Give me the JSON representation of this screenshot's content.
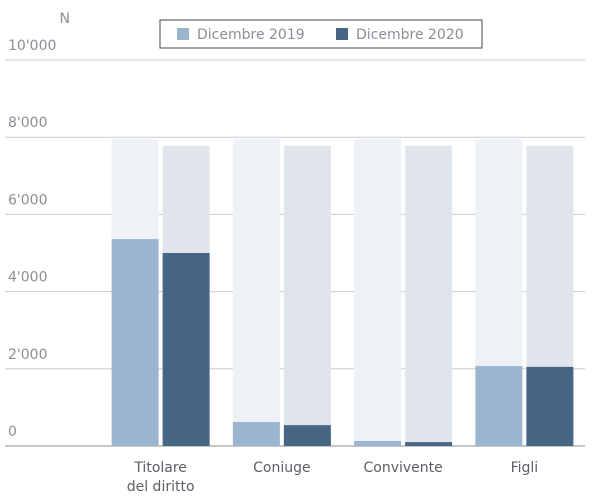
{
  "chart_data": {
    "type": "bar",
    "y_label": "N",
    "categories": [
      "Titolare\ndel diritto",
      "Coniuge",
      "Convivente",
      "Figli"
    ],
    "series": [
      {
        "name": "Dicembre 2019",
        "color": "#9bb5cf",
        "background_color": "#eef2f6",
        "values": [
          5360,
          620,
          130,
          2070
        ],
        "background_values": [
          7950,
          7950,
          7950,
          7950
        ]
      },
      {
        "name": "Dicembre 2020",
        "color": "#476584",
        "background_color": "#dfe5ea",
        "values": [
          5000,
          540,
          100,
          2050
        ],
        "background_values": [
          7780,
          7780,
          7780,
          7780
        ]
      }
    ],
    "ylim": [
      0,
      10000
    ],
    "yticks": [
      0,
      {
        "value": 2000,
        "label": "2'000"
      },
      {
        "value": 4000,
        "label": "4'000"
      },
      {
        "value": 6000,
        "label": "6'000"
      },
      {
        "value": 8000,
        "label": "8'000"
      },
      {
        "value": 10000,
        "label": "10'000"
      }
    ],
    "grid": true,
    "legend": "top"
  }
}
